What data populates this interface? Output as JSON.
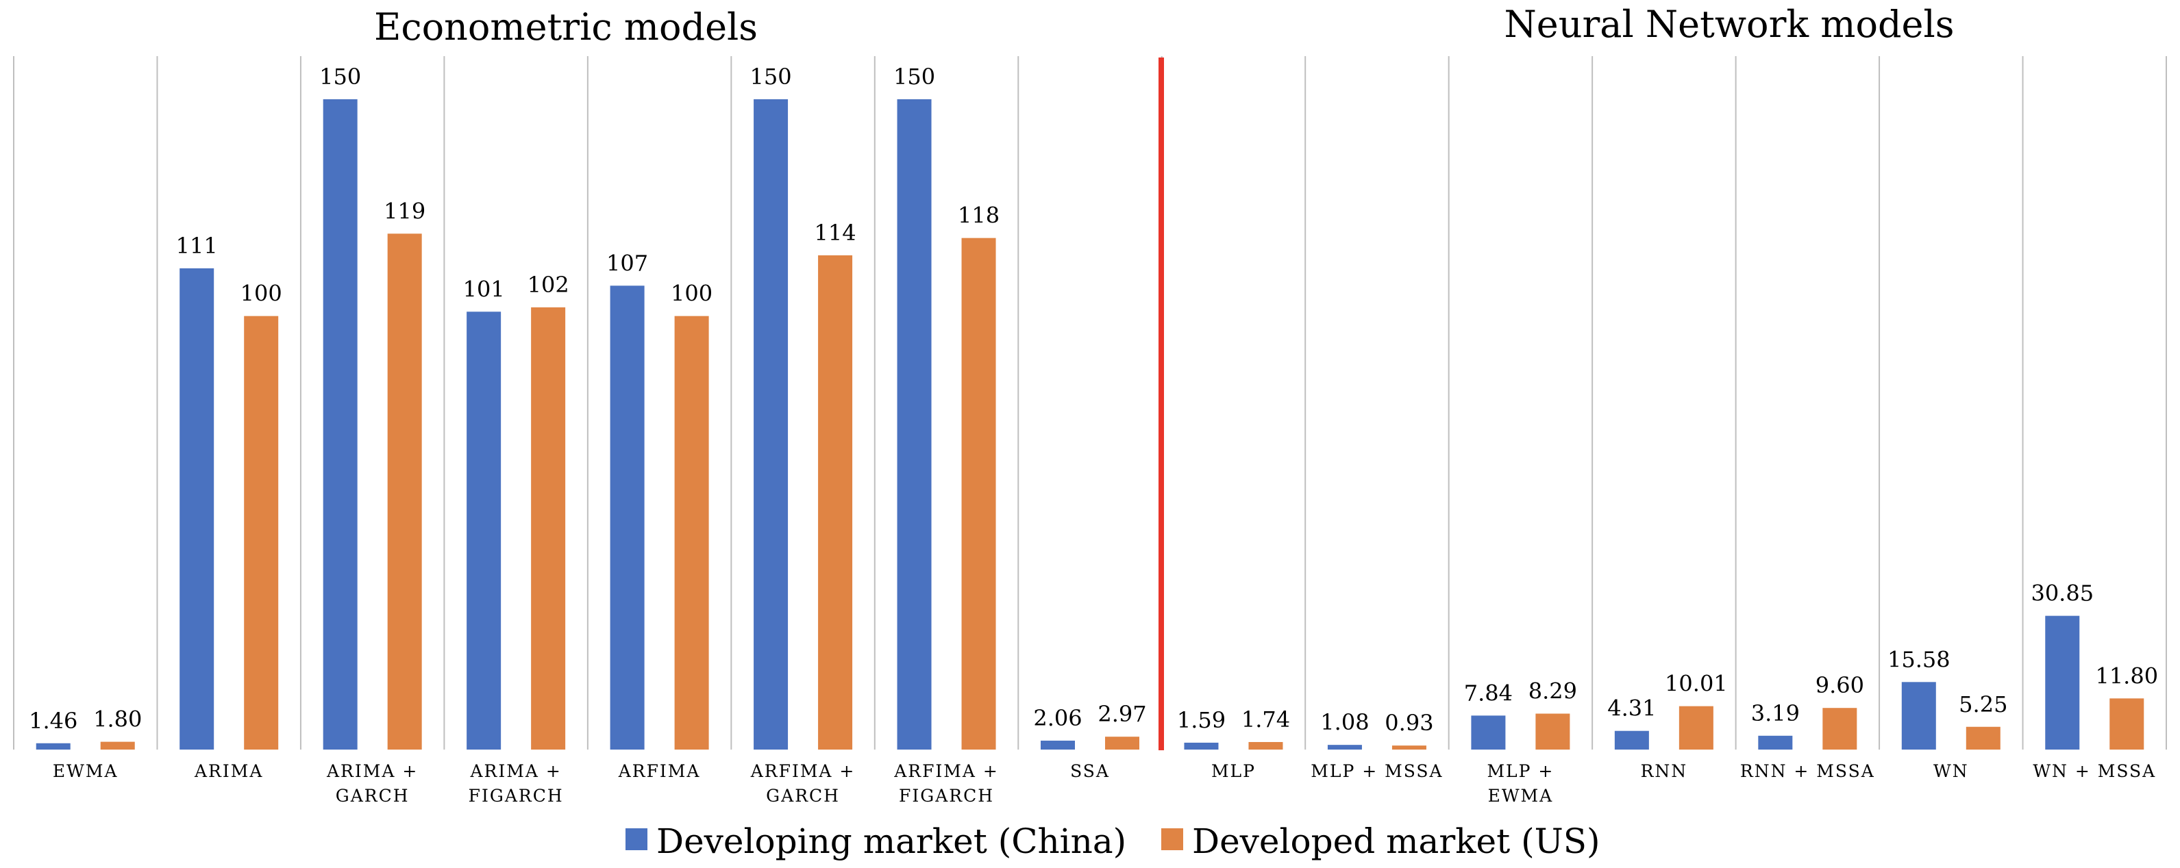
{
  "chart_data": {
    "type": "bar",
    "group_titles": [
      "Econometric models",
      "Neural Network models"
    ],
    "categories": [
      "EWMA",
      "ARIMA",
      "ARIMA + GARCH",
      "ARIMA + FIGARCH",
      "ARFIMA",
      "ARFIMA + GARCH",
      "ARFIMA + FIGARCH",
      "SSA",
      "MLP",
      "MLP + MSSA",
      "MLP + EWMA",
      "RNN",
      "RNN + MSSA",
      "WN",
      "WN + MSSA"
    ],
    "category_lines": [
      [
        "EWMA"
      ],
      [
        "ARIMA"
      ],
      [
        "ARIMA +",
        "GARCH"
      ],
      [
        "ARIMA +",
        "FIGARCH"
      ],
      [
        "ARFIMA"
      ],
      [
        "ARFIMA +",
        "GARCH"
      ],
      [
        "ARFIMA +",
        "FIGARCH"
      ],
      [
        "SSA"
      ],
      [
        "MLP"
      ],
      [
        "MLP + MSSA"
      ],
      [
        "MLP +",
        "EWMA"
      ],
      [
        "RNN"
      ],
      [
        "RNN + MSSA"
      ],
      [
        "WN"
      ],
      [
        "WN + MSSA"
      ]
    ],
    "series": [
      {
        "name": "Developing market (China)",
        "color": "#4a72c0",
        "values": [
          1.46,
          111,
          150,
          101,
          107,
          150,
          150,
          2.06,
          1.59,
          1.08,
          7.84,
          4.31,
          3.19,
          15.58,
          30.85
        ],
        "labels": [
          "1.46",
          "111",
          "150",
          "101",
          "107",
          "150",
          "150",
          "2.06",
          "1.59",
          "1.08",
          "7.84",
          "4.31",
          "3.19",
          "15.58",
          "30.85"
        ]
      },
      {
        "name": "Developed market (US)",
        "color": "#e08444",
        "values": [
          1.8,
          100,
          119,
          102,
          100,
          114,
          118,
          2.97,
          1.74,
          0.93,
          8.29,
          10.01,
          9.6,
          5.25,
          11.8
        ],
        "labels": [
          "1.80",
          "100",
          "119",
          "102",
          "100",
          "114",
          "118",
          "2.97",
          "1.74",
          "0.93",
          "8.29",
          "10.01",
          "9.60",
          "5.25",
          "11.80"
        ]
      }
    ],
    "ylim": [
      0,
      150
    ],
    "divider_after_index": 7,
    "divider_color": "#e8352a",
    "grid": "vertical separators",
    "legend_position": "bottom-center",
    "xlabel": "",
    "ylabel": ""
  }
}
